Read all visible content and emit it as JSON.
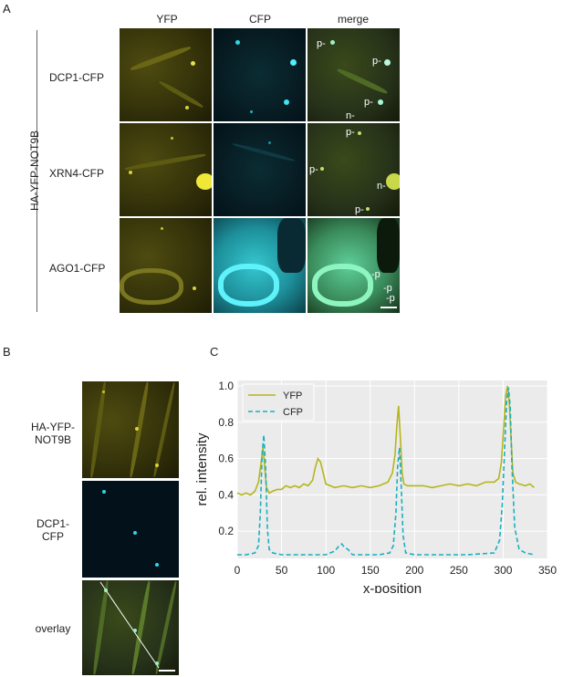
{
  "panelA": {
    "letter": "A",
    "col_headers": [
      "YFP",
      "CFP",
      "merge"
    ],
    "side_label": "HA-YFP-NOT9B",
    "rows": [
      {
        "label": "DCP1-CFP",
        "annotations": [
          "p-",
          "p-",
          "p-",
          "n-"
        ]
      },
      {
        "label": "XRN4-CFP",
        "annotations": [
          "p-",
          "p-",
          "n-",
          "p-"
        ]
      },
      {
        "label": "AGO1-CFP",
        "annotations": [
          "-p",
          "-p",
          "-p"
        ]
      }
    ]
  },
  "panelB": {
    "letter": "B",
    "rows": [
      {
        "label_line1": "HA-YFP-",
        "label_line2": "NOT9B"
      },
      {
        "label_line1": "DCP1-",
        "label_line2": "CFP"
      },
      {
        "label_line1": "overlay",
        "label_line2": ""
      }
    ]
  },
  "panelC": {
    "letter": "C"
  },
  "chart_data": {
    "type": "line",
    "xlabel": "x-position",
    "ylabel": "rel. intensity",
    "xlim": [
      0,
      350
    ],
    "ylim": [
      0.05,
      1.03
    ],
    "xticks": [
      0,
      50,
      100,
      150,
      200,
      250,
      300,
      350
    ],
    "yticks": [
      0.2,
      0.4,
      0.6,
      0.8,
      1.0
    ],
    "ytick_labels": [
      "0.2",
      "0.4",
      "0.6",
      "0.8",
      "1.0"
    ],
    "grid": true,
    "legend_position": "top-left",
    "series": [
      {
        "name": "YFP",
        "color": "#b5b51e",
        "style": "solid",
        "x": [
          0,
          5,
          10,
          15,
          20,
          24,
          27,
          29,
          31,
          33,
          36,
          40,
          45,
          50,
          55,
          60,
          65,
          70,
          75,
          80,
          85,
          88,
          91,
          94,
          97,
          100,
          105,
          110,
          120,
          130,
          140,
          150,
          160,
          170,
          175,
          178,
          180,
          182,
          184,
          186,
          188,
          192,
          200,
          210,
          220,
          230,
          240,
          250,
          260,
          270,
          280,
          290,
          295,
          298,
          301,
          303,
          305,
          307,
          309,
          311,
          314,
          318,
          325,
          330,
          335
        ],
        "y": [
          0.41,
          0.4,
          0.41,
          0.4,
          0.42,
          0.47,
          0.58,
          0.66,
          0.55,
          0.44,
          0.41,
          0.42,
          0.43,
          0.43,
          0.45,
          0.44,
          0.45,
          0.44,
          0.46,
          0.45,
          0.48,
          0.55,
          0.6,
          0.58,
          0.52,
          0.46,
          0.45,
          0.44,
          0.45,
          0.44,
          0.45,
          0.44,
          0.45,
          0.47,
          0.52,
          0.62,
          0.78,
          0.89,
          0.72,
          0.52,
          0.46,
          0.45,
          0.45,
          0.45,
          0.44,
          0.45,
          0.46,
          0.45,
          0.46,
          0.45,
          0.47,
          0.47,
          0.49,
          0.58,
          0.8,
          0.95,
          1.0,
          0.9,
          0.7,
          0.52,
          0.47,
          0.46,
          0.45,
          0.46,
          0.44
        ]
      },
      {
        "name": "CFP",
        "color": "#1aafc0",
        "style": "dashed",
        "x": [
          0,
          10,
          20,
          24,
          26,
          28,
          30,
          32,
          34,
          36,
          40,
          50,
          60,
          80,
          100,
          110,
          115,
          118,
          121,
          125,
          130,
          140,
          160,
          172,
          176,
          179,
          181,
          183,
          185,
          187,
          190,
          200,
          220,
          260,
          290,
          296,
          299,
          302,
          304,
          306,
          308,
          310,
          313,
          318,
          325,
          335
        ],
        "y": [
          0.07,
          0.07,
          0.08,
          0.12,
          0.3,
          0.62,
          0.73,
          0.55,
          0.22,
          0.1,
          0.08,
          0.07,
          0.07,
          0.07,
          0.07,
          0.09,
          0.12,
          0.13,
          0.11,
          0.1,
          0.07,
          0.07,
          0.07,
          0.08,
          0.12,
          0.3,
          0.56,
          0.66,
          0.45,
          0.18,
          0.08,
          0.07,
          0.07,
          0.07,
          0.08,
          0.15,
          0.35,
          0.7,
          0.92,
          0.99,
          0.88,
          0.55,
          0.22,
          0.1,
          0.08,
          0.07
        ]
      }
    ]
  }
}
